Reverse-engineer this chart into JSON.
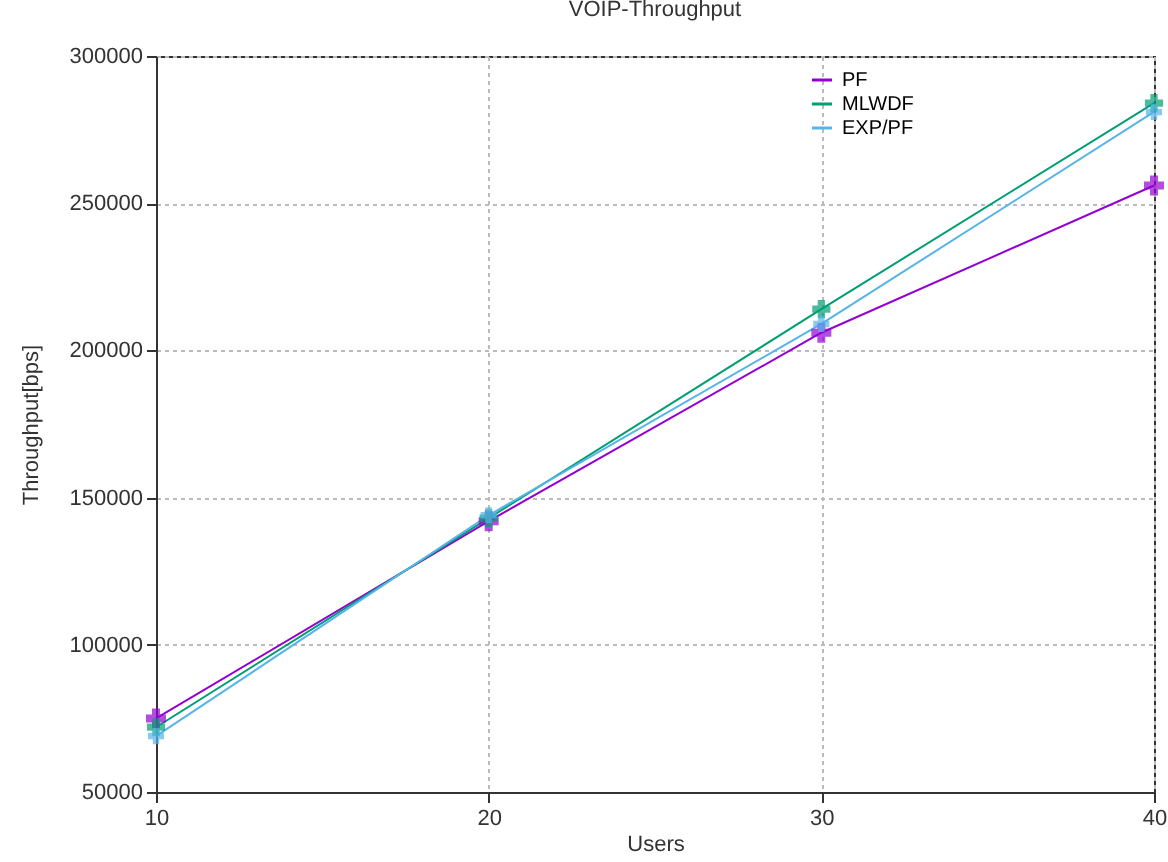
{
  "chart_data": {
    "type": "line",
    "title": "VOIP-Throughput",
    "xlabel": "Users",
    "ylabel": "Throughput[bps]",
    "x": [
      10,
      20,
      30,
      40
    ],
    "series": [
      {
        "name": "PF",
        "color": "#9400d3",
        "values": [
          75000,
          142000,
          206000,
          256000
        ]
      },
      {
        "name": "MLWDF",
        "color": "#009e73",
        "values": [
          72000,
          143000,
          214000,
          284000
        ]
      },
      {
        "name": "EXP/PF",
        "color": "#56b4e9",
        "values": [
          69000,
          144000,
          209000,
          281000
        ]
      }
    ],
    "xlim": [
      10,
      40
    ],
    "xticks": [
      10,
      20,
      30,
      40
    ],
    "ylim": [
      50000,
      300000
    ],
    "yticks": [
      50000,
      100000,
      150000,
      200000,
      250000,
      300000
    ],
    "grid": true,
    "legend": "top right",
    "marker": "cross",
    "line_style": "solid"
  }
}
